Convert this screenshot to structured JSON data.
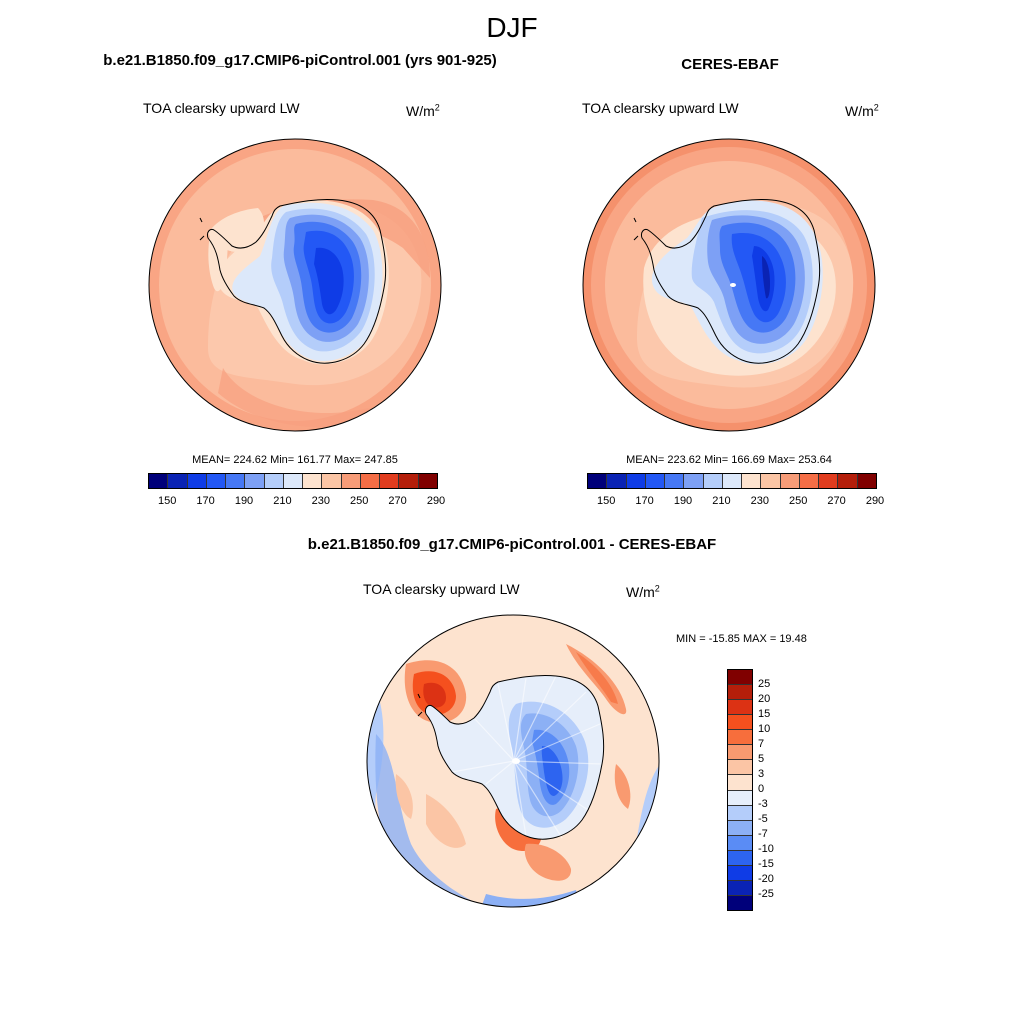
{
  "main_title": "DJF",
  "panels": [
    {
      "title": "b.e21.B1850.f09_g17.CMIP6-piControl.001 (yrs 901-925)",
      "variable": "TOA clearsky upward LW",
      "units": "W/m",
      "units_exp": "2",
      "stats": "MEAN= 224.62  Min= 161.77  Max= 247.85"
    },
    {
      "title": "CERES-EBAF",
      "variable": "TOA clearsky upward LW",
      "units": "W/m",
      "units_exp": "2",
      "stats": "MEAN= 223.62  Min= 166.69  Max= 253.64"
    },
    {
      "title": "b.e21.B1850.f09_g17.CMIP6-piControl.001 - CERES-EBAF",
      "variable": "TOA clearsky upward LW",
      "units": "W/m",
      "units_exp": "2",
      "stats": "MIN = -15.85 MAX =  19.48"
    }
  ],
  "colorbar_abs": {
    "colors": [
      "#00007a",
      "#0a23b4",
      "#0f3ce6",
      "#2358f5",
      "#4678f5",
      "#7da0f5",
      "#b4cdfa",
      "#dce8fa",
      "#fde3cf",
      "#fbc5a5",
      "#f79c78",
      "#f56e46",
      "#e13c1e",
      "#b41e0a",
      "#800000"
    ],
    "tick_labels": [
      "150",
      "170",
      "190",
      "210",
      "230",
      "250",
      "270",
      "290"
    ]
  },
  "colorbar_diff": {
    "colors": [
      "#800000",
      "#b41e0a",
      "#dc3214",
      "#f5501e",
      "#f76e3c",
      "#f99a70",
      "#fbc5a5",
      "#fde3cf",
      "#e6eefa",
      "#b4cdfa",
      "#8cb0f5",
      "#5a8cf5",
      "#2d64f0",
      "#0f3ce6",
      "#0a23b4",
      "#00007a"
    ],
    "tick_labels": [
      "25",
      "20",
      "15",
      "10",
      "7",
      "5",
      "3",
      "0",
      "-3",
      "-5",
      "-7",
      "-10",
      "-15",
      "-20",
      "-25"
    ]
  }
}
